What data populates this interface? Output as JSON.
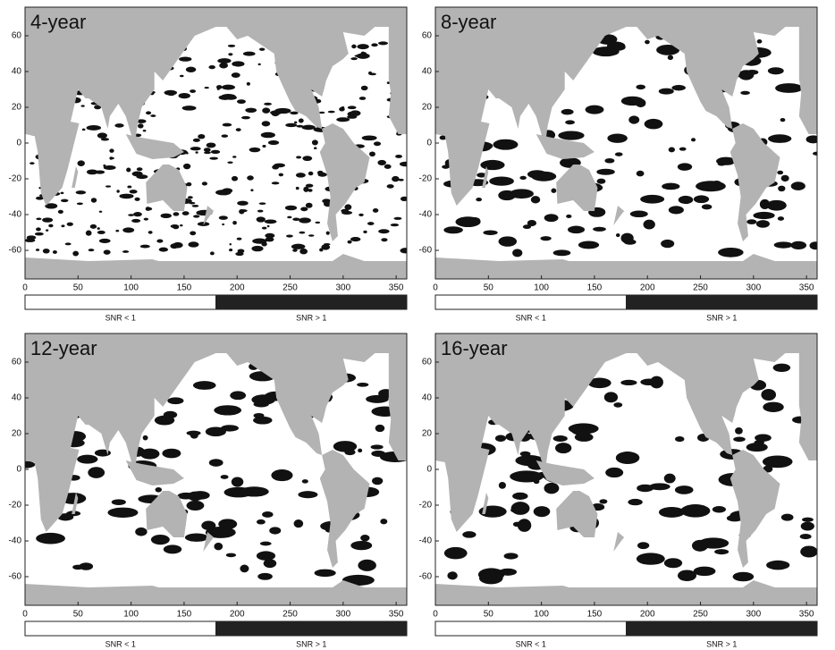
{
  "xlim": [
    0,
    360
  ],
  "ylim": [
    -76,
    76
  ],
  "panels": [
    {
      "title": "4-year",
      "xticks": [
        0,
        50,
        100,
        150,
        200,
        250,
        300,
        350
      ],
      "yticks": [
        60,
        40,
        20,
        0,
        -20,
        -40,
        -60
      ],
      "legend": [
        "SNR < 1",
        "SNR > 1"
      ]
    },
    {
      "title": "8-year",
      "xticks": [
        0,
        50,
        100,
        150,
        200,
        250,
        300,
        350
      ],
      "yticks": [
        60,
        40,
        20,
        0,
        -20,
        -40,
        -60
      ],
      "legend": [
        "SNR < 1",
        "SNR > 1"
      ]
    },
    {
      "title": "12-year",
      "xticks": [
        0,
        50,
        100,
        150,
        200,
        250,
        300,
        350
      ],
      "yticks": [
        60,
        40,
        20,
        0,
        -20,
        -40,
        -60
      ],
      "legend": [
        "SNR < 1",
        "SNR > 1"
      ]
    },
    {
      "title": "16-year",
      "xticks": [
        0,
        50,
        100,
        150,
        200,
        250,
        300,
        350
      ],
      "yticks": [
        60,
        40,
        20,
        0,
        -20,
        -40,
        -60
      ],
      "legend": [
        "SNR < 1",
        "SNR > 1"
      ]
    }
  ]
}
